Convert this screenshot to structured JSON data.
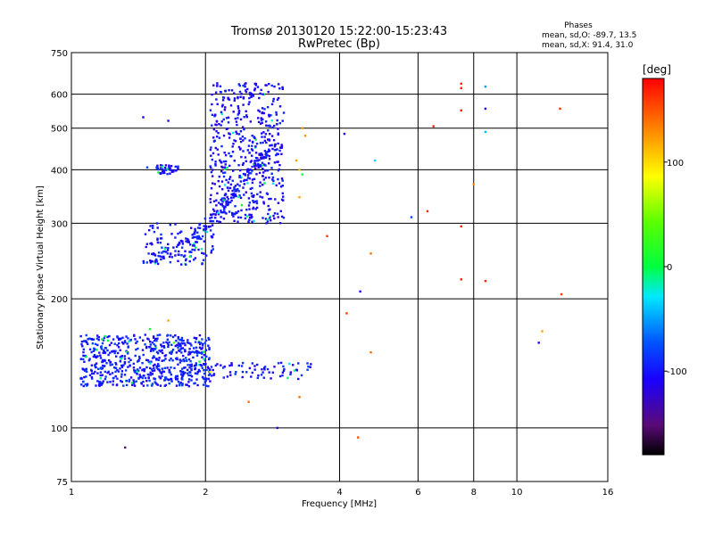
{
  "chart_data": {
    "type": "scatter",
    "title": "Tromsø 20130120 15:22:00-15:23:43",
    "subtitle": "RwPretec (Bp)",
    "xlabel": "Frequency [MHz]",
    "ylabel": "Stationary phase Virtual Height [km]",
    "x_scale": "log",
    "y_scale": "log",
    "xlim": [
      1,
      16
    ],
    "ylim": [
      75,
      750
    ],
    "grid": true,
    "x_ticks": [
      1,
      2,
      4,
      6,
      8,
      10,
      16
    ],
    "x_tick_labels": [
      "1",
      "2",
      "4",
      "6",
      "8",
      "10",
      "16"
    ],
    "y_ticks": [
      75,
      100,
      200,
      300,
      400,
      500,
      600,
      750
    ],
    "y_tick_labels": [
      "75",
      "100",
      "200",
      "300",
      "400",
      "500",
      "600",
      "750"
    ],
    "phase_box": {
      "heading": "Phases",
      "line_o": "mean, sd,O: -89.7, 13.5",
      "line_x": "mean, sd,X:  91.4, 31.0"
    },
    "colorbar": {
      "unit_label": "[deg]",
      "range": [
        -180,
        180
      ],
      "ticks": [
        100,
        0,
        -100
      ],
      "tick_labels": [
        "100",
        "0",
        "-100"
      ]
    },
    "clusters": [
      {
        "name": "lower-layer",
        "kind": "blob",
        "x_range": [
          1.05,
          2.05
        ],
        "y_range": [
          125,
          165
        ],
        "phase": -95,
        "count": 650
      },
      {
        "name": "lower-layer-tail",
        "kind": "blob",
        "x_range": [
          2.05,
          3.5
        ],
        "y_range": [
          130,
          142
        ],
        "phase": -100,
        "count": 70
      },
      {
        "name": "f-trace-lower-edge",
        "kind": "curve",
        "x": [
          1.5,
          1.6,
          1.75,
          1.9,
          2.05,
          2.2,
          2.35,
          2.5,
          2.65,
          2.8,
          2.95
        ],
        "y": [
          245,
          252,
          262,
          280,
          305,
          335,
          365,
          395,
          420,
          440,
          455
        ],
        "spread_y": 0.04,
        "phase": -100,
        "count": 180
      },
      {
        "name": "f-layer-body",
        "kind": "blob",
        "x_range": [
          2.05,
          3.0
        ],
        "y_range": [
          300,
          640
        ],
        "phase": -105,
        "count": 500
      },
      {
        "name": "f-low-branch",
        "kind": "blob",
        "x_range": [
          1.45,
          2.1
        ],
        "y_range": [
          240,
          300
        ],
        "phase": -100,
        "count": 120
      },
      {
        "name": "f-small-patch",
        "kind": "blob",
        "x_range": [
          1.55,
          1.75
        ],
        "y_range": [
          390,
          410
        ],
        "phase": -100,
        "count": 40
      }
    ],
    "points": [
      {
        "x": 1.32,
        "y": 90,
        "phase": -150
      },
      {
        "x": 1.45,
        "y": 530,
        "phase": -110
      },
      {
        "x": 1.65,
        "y": 520,
        "phase": -120
      },
      {
        "x": 1.48,
        "y": 405,
        "phase": -80
      },
      {
        "x": 1.5,
        "y": 170,
        "phase": 10
      },
      {
        "x": 1.65,
        "y": 178,
        "phase": 120
      },
      {
        "x": 1.7,
        "y": 158,
        "phase": 40
      },
      {
        "x": 2.05,
        "y": 135,
        "phase": 80
      },
      {
        "x": 2.5,
        "y": 115,
        "phase": 140
      },
      {
        "x": 2.9,
        "y": 100,
        "phase": -110
      },
      {
        "x": 3.25,
        "y": 118,
        "phase": 140
      },
      {
        "x": 3.2,
        "y": 420,
        "phase": 120
      },
      {
        "x": 3.25,
        "y": 400,
        "phase": 110
      },
      {
        "x": 3.3,
        "y": 390,
        "phase": 10
      },
      {
        "x": 3.35,
        "y": 480,
        "phase": 125
      },
      {
        "x": 3.3,
        "y": 500,
        "phase": 125
      },
      {
        "x": 3.25,
        "y": 345,
        "phase": 120
      },
      {
        "x": 3.75,
        "y": 280,
        "phase": 160
      },
      {
        "x": 4.1,
        "y": 485,
        "phase": -110
      },
      {
        "x": 4.15,
        "y": 185,
        "phase": 160
      },
      {
        "x": 4.45,
        "y": 208,
        "phase": -110
      },
      {
        "x": 4.7,
        "y": 150,
        "phase": 140
      },
      {
        "x": 4.7,
        "y": 255,
        "phase": 140
      },
      {
        "x": 4.8,
        "y": 420,
        "phase": -30
      },
      {
        "x": 4.4,
        "y": 95,
        "phase": 150
      },
      {
        "x": 5.8,
        "y": 310,
        "phase": -80
      },
      {
        "x": 6.3,
        "y": 320,
        "phase": 165
      },
      {
        "x": 6.5,
        "y": 505,
        "phase": 170
      },
      {
        "x": 7.5,
        "y": 635,
        "phase": 170
      },
      {
        "x": 7.5,
        "y": 620,
        "phase": 170
      },
      {
        "x": 7.5,
        "y": 550,
        "phase": 170
      },
      {
        "x": 7.5,
        "y": 295,
        "phase": 170
      },
      {
        "x": 7.5,
        "y": 222,
        "phase": 170
      },
      {
        "x": 8.0,
        "y": 370,
        "phase": 130
      },
      {
        "x": 8.5,
        "y": 625,
        "phase": -50
      },
      {
        "x": 8.5,
        "y": 555,
        "phase": -120
      },
      {
        "x": 8.5,
        "y": 490,
        "phase": -40
      },
      {
        "x": 8.5,
        "y": 220,
        "phase": 165
      },
      {
        "x": 11.2,
        "y": 158,
        "phase": -110
      },
      {
        "x": 11.4,
        "y": 168,
        "phase": 120
      },
      {
        "x": 12.5,
        "y": 555,
        "phase": 165
      },
      {
        "x": 12.6,
        "y": 205,
        "phase": 160
      }
    ]
  }
}
